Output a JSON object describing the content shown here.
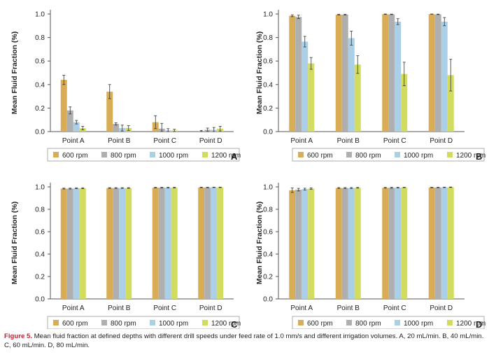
{
  "legend_labels": [
    "600 rpm",
    "800 rpm",
    "1000 rpm",
    "1200 rpm"
  ],
  "colors": {
    "600 rpm": "#d9ad55",
    "800 rpm": "#afafaf",
    "1000 rpm": "#aacfe6",
    "1200 rpm": "#d2dc5e",
    "axis": "#555555",
    "caption_label": "#c8202f"
  },
  "caption": {
    "label": "Figure 5.",
    "text": " Mean fluid fraction at defined depths with different drill speeds under feed rate of 1.0 mm/s and different irrigation volumes. A, 20 mL/min. B, 40 mL/min. C, 60 mL/min. D, 80 mL/min."
  },
  "chart_data": [
    {
      "panel": "A",
      "type": "bar",
      "categories": [
        "Point A",
        "Point B",
        "Point C",
        "Point D"
      ],
      "ylabel": "Mean Fluid Fraction (%)",
      "ylim": [
        0,
        1.0
      ],
      "yticks": [
        "0.0",
        "0.2",
        "0.4",
        "0.6",
        "0.8",
        "1.0"
      ],
      "series": [
        {
          "name": "600 rpm",
          "values": [
            0.44,
            0.34,
            0.08,
            0.005
          ],
          "errors": [
            0.04,
            0.06,
            0.055,
            0.005
          ]
        },
        {
          "name": "800 rpm",
          "values": [
            0.18,
            0.065,
            0.025,
            0.015
          ],
          "errors": [
            0.03,
            0.01,
            0.045,
            0.015
          ]
        },
        {
          "name": "1000 rpm",
          "values": [
            0.08,
            0.03,
            0.01,
            0.015
          ],
          "errors": [
            0.015,
            0.025,
            0.015,
            0.02
          ]
        },
        {
          "name": "1200 rpm",
          "values": [
            0.03,
            0.03,
            0.01,
            0.025
          ],
          "errors": [
            0.015,
            0.02,
            0.01,
            0.02
          ]
        }
      ]
    },
    {
      "panel": "B",
      "type": "bar",
      "categories": [
        "Point A",
        "Point B",
        "Point C",
        "Point D"
      ],
      "ylabel": "Mean Fluid Fraction (%)",
      "ylim": [
        0,
        1.0
      ],
      "yticks": [
        "0.0",
        "0.2",
        "0.4",
        "0.6",
        "0.8",
        "1.0"
      ],
      "series": [
        {
          "name": "600 rpm",
          "values": [
            0.985,
            0.995,
            0.998,
            0.999
          ],
          "errors": [
            0.008,
            0.003,
            0.002,
            0.001
          ]
        },
        {
          "name": "800 rpm",
          "values": [
            0.975,
            0.995,
            0.997,
            0.997
          ],
          "errors": [
            0.015,
            0.003,
            0.002,
            0.002
          ]
        },
        {
          "name": "1000 rpm",
          "values": [
            0.765,
            0.795,
            0.935,
            0.935
          ],
          "errors": [
            0.045,
            0.06,
            0.025,
            0.035
          ]
        },
        {
          "name": "1200 rpm",
          "values": [
            0.58,
            0.57,
            0.49,
            0.48
          ],
          "errors": [
            0.05,
            0.075,
            0.1,
            0.135
          ]
        }
      ]
    },
    {
      "panel": "C",
      "type": "bar",
      "categories": [
        "Point A",
        "Point B",
        "Point C",
        "Point D"
      ],
      "ylabel": "Mean Fluid Fraction (%)",
      "ylim": [
        0,
        1.0
      ],
      "yticks": [
        "0.0",
        "0.2",
        "0.4",
        "0.6",
        "0.8",
        "1.0"
      ],
      "series": [
        {
          "name": "600 rpm",
          "values": [
            0.985,
            0.99,
            0.993,
            0.995
          ],
          "errors": [
            0.004,
            0.003,
            0.003,
            0.002
          ]
        },
        {
          "name": "800 rpm",
          "values": [
            0.985,
            0.99,
            0.993,
            0.995
          ],
          "errors": [
            0.004,
            0.003,
            0.003,
            0.002
          ]
        },
        {
          "name": "1000 rpm",
          "values": [
            0.988,
            0.99,
            0.993,
            0.996
          ],
          "errors": [
            0.004,
            0.003,
            0.003,
            0.002
          ]
        },
        {
          "name": "1200 rpm",
          "values": [
            0.988,
            0.99,
            0.993,
            0.996
          ],
          "errors": [
            0.004,
            0.003,
            0.003,
            0.002
          ]
        }
      ]
    },
    {
      "panel": "D",
      "type": "bar",
      "categories": [
        "Point A",
        "Point B",
        "Point C",
        "Point D"
      ],
      "ylabel": "Mean Fluid Fraction (%)",
      "ylim": [
        0,
        1.0
      ],
      "yticks": [
        "0.0",
        "0.2",
        "0.4",
        "0.6",
        "0.8",
        "1.0"
      ],
      "series": [
        {
          "name": "600 rpm",
          "values": [
            0.97,
            0.99,
            0.992,
            0.995
          ],
          "errors": [
            0.02,
            0.004,
            0.004,
            0.002
          ]
        },
        {
          "name": "800 rpm",
          "values": [
            0.975,
            0.99,
            0.992,
            0.995
          ],
          "errors": [
            0.012,
            0.004,
            0.004,
            0.002
          ]
        },
        {
          "name": "1000 rpm",
          "values": [
            0.98,
            0.99,
            0.993,
            0.996
          ],
          "errors": [
            0.008,
            0.004,
            0.003,
            0.002
          ]
        },
        {
          "name": "1200 rpm",
          "values": [
            0.985,
            0.992,
            0.995,
            0.997
          ],
          "errors": [
            0.006,
            0.003,
            0.002,
            0.002
          ]
        }
      ]
    }
  ]
}
